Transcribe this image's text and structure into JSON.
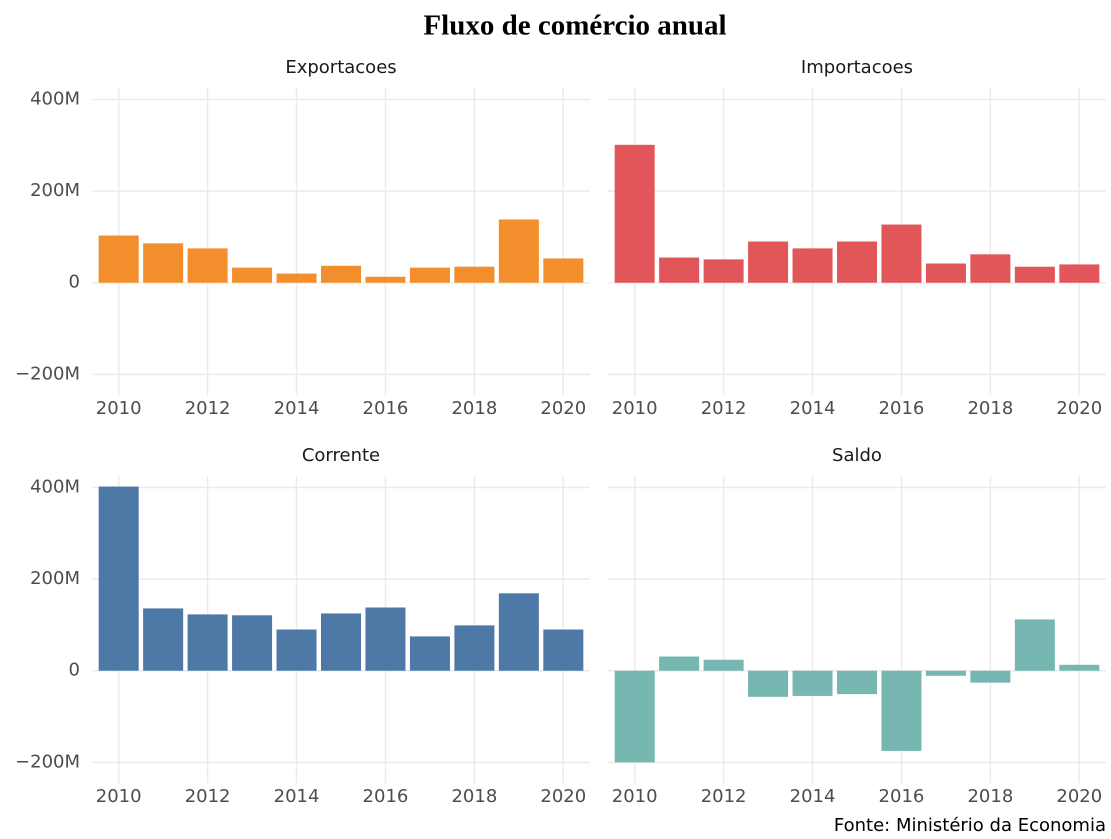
{
  "title": "Fluxo de comércio anual",
  "caption": "Fonte: Ministério da Economia",
  "chart_data": [
    {
      "type": "bar",
      "title": "Exportacoes",
      "color": "#F28E2B",
      "x": [
        2010,
        2011,
        2012,
        2013,
        2014,
        2015,
        2016,
        2017,
        2018,
        2019,
        2020
      ],
      "values": [
        103000000,
        86000000,
        75000000,
        33000000,
        20000000,
        37000000,
        13000000,
        33000000,
        35000000,
        138000000,
        53000000
      ],
      "xlim": [
        2009.4,
        2020.6
      ],
      "xticks": [
        2010,
        2012,
        2014,
        2016,
        2018,
        2020
      ],
      "ylim": [
        -245000000,
        425000000
      ],
      "yticks": [
        {
          "value": -200000000,
          "label": "−200M"
        },
        0,
        {
          "value": 200000000,
          "label": "200M"
        },
        {
          "value": 400000000,
          "label": "400M"
        }
      ],
      "grid": true
    },
    {
      "type": "bar",
      "title": "Importacoes",
      "color": "#E15759",
      "x": [
        2010,
        2011,
        2012,
        2013,
        2014,
        2015,
        2016,
        2017,
        2018,
        2019,
        2020
      ],
      "values": [
        301000000,
        55000000,
        51000000,
        90000000,
        75000000,
        90000000,
        127000000,
        42000000,
        62000000,
        35000000,
        40000000
      ],
      "xlim": [
        2009.4,
        2020.6
      ],
      "xticks": [
        2010,
        2012,
        2014,
        2016,
        2018,
        2020
      ],
      "ylim": [
        -245000000,
        425000000
      ],
      "yticks": [
        {
          "value": -200000000,
          "label": "−200M"
        },
        0,
        {
          "value": 200000000,
          "label": "200M"
        },
        {
          "value": 400000000,
          "label": "400M"
        }
      ],
      "grid": true
    },
    {
      "type": "bar",
      "title": "Corrente",
      "color": "#4E79A7",
      "x": [
        2010,
        2011,
        2012,
        2013,
        2014,
        2015,
        2016,
        2017,
        2018,
        2019,
        2020
      ],
      "values": [
        402000000,
        136000000,
        123000000,
        121000000,
        90000000,
        125000000,
        138000000,
        75000000,
        99000000,
        169000000,
        90000000
      ],
      "xlim": [
        2009.4,
        2020.6
      ],
      "xticks": [
        2010,
        2012,
        2014,
        2016,
        2018,
        2020
      ],
      "ylim": [
        -245000000,
        425000000
      ],
      "yticks": [
        {
          "value": -200000000,
          "label": "−200M"
        },
        0,
        {
          "value": 200000000,
          "label": "200M"
        },
        {
          "value": 400000000,
          "label": "400M"
        }
      ],
      "grid": true
    },
    {
      "type": "bar",
      "title": "Saldo",
      "color": "#76B7B2",
      "x": [
        2010,
        2011,
        2012,
        2013,
        2014,
        2015,
        2016,
        2017,
        2018,
        2019,
        2020
      ],
      "values": [
        -200000000,
        31000000,
        24000000,
        -57000000,
        -55000000,
        -51000000,
        -175000000,
        -11000000,
        -26000000,
        112000000,
        13000000
      ],
      "xlim": [
        2009.4,
        2020.6
      ],
      "xticks": [
        2010,
        2012,
        2014,
        2016,
        2018,
        2020
      ],
      "ylim": [
        -245000000,
        425000000
      ],
      "yticks": [
        {
          "value": -200000000,
          "label": "−200M"
        },
        0,
        {
          "value": 200000000,
          "label": "200M"
        },
        {
          "value": 400000000,
          "label": "400M"
        }
      ],
      "grid": true
    }
  ]
}
